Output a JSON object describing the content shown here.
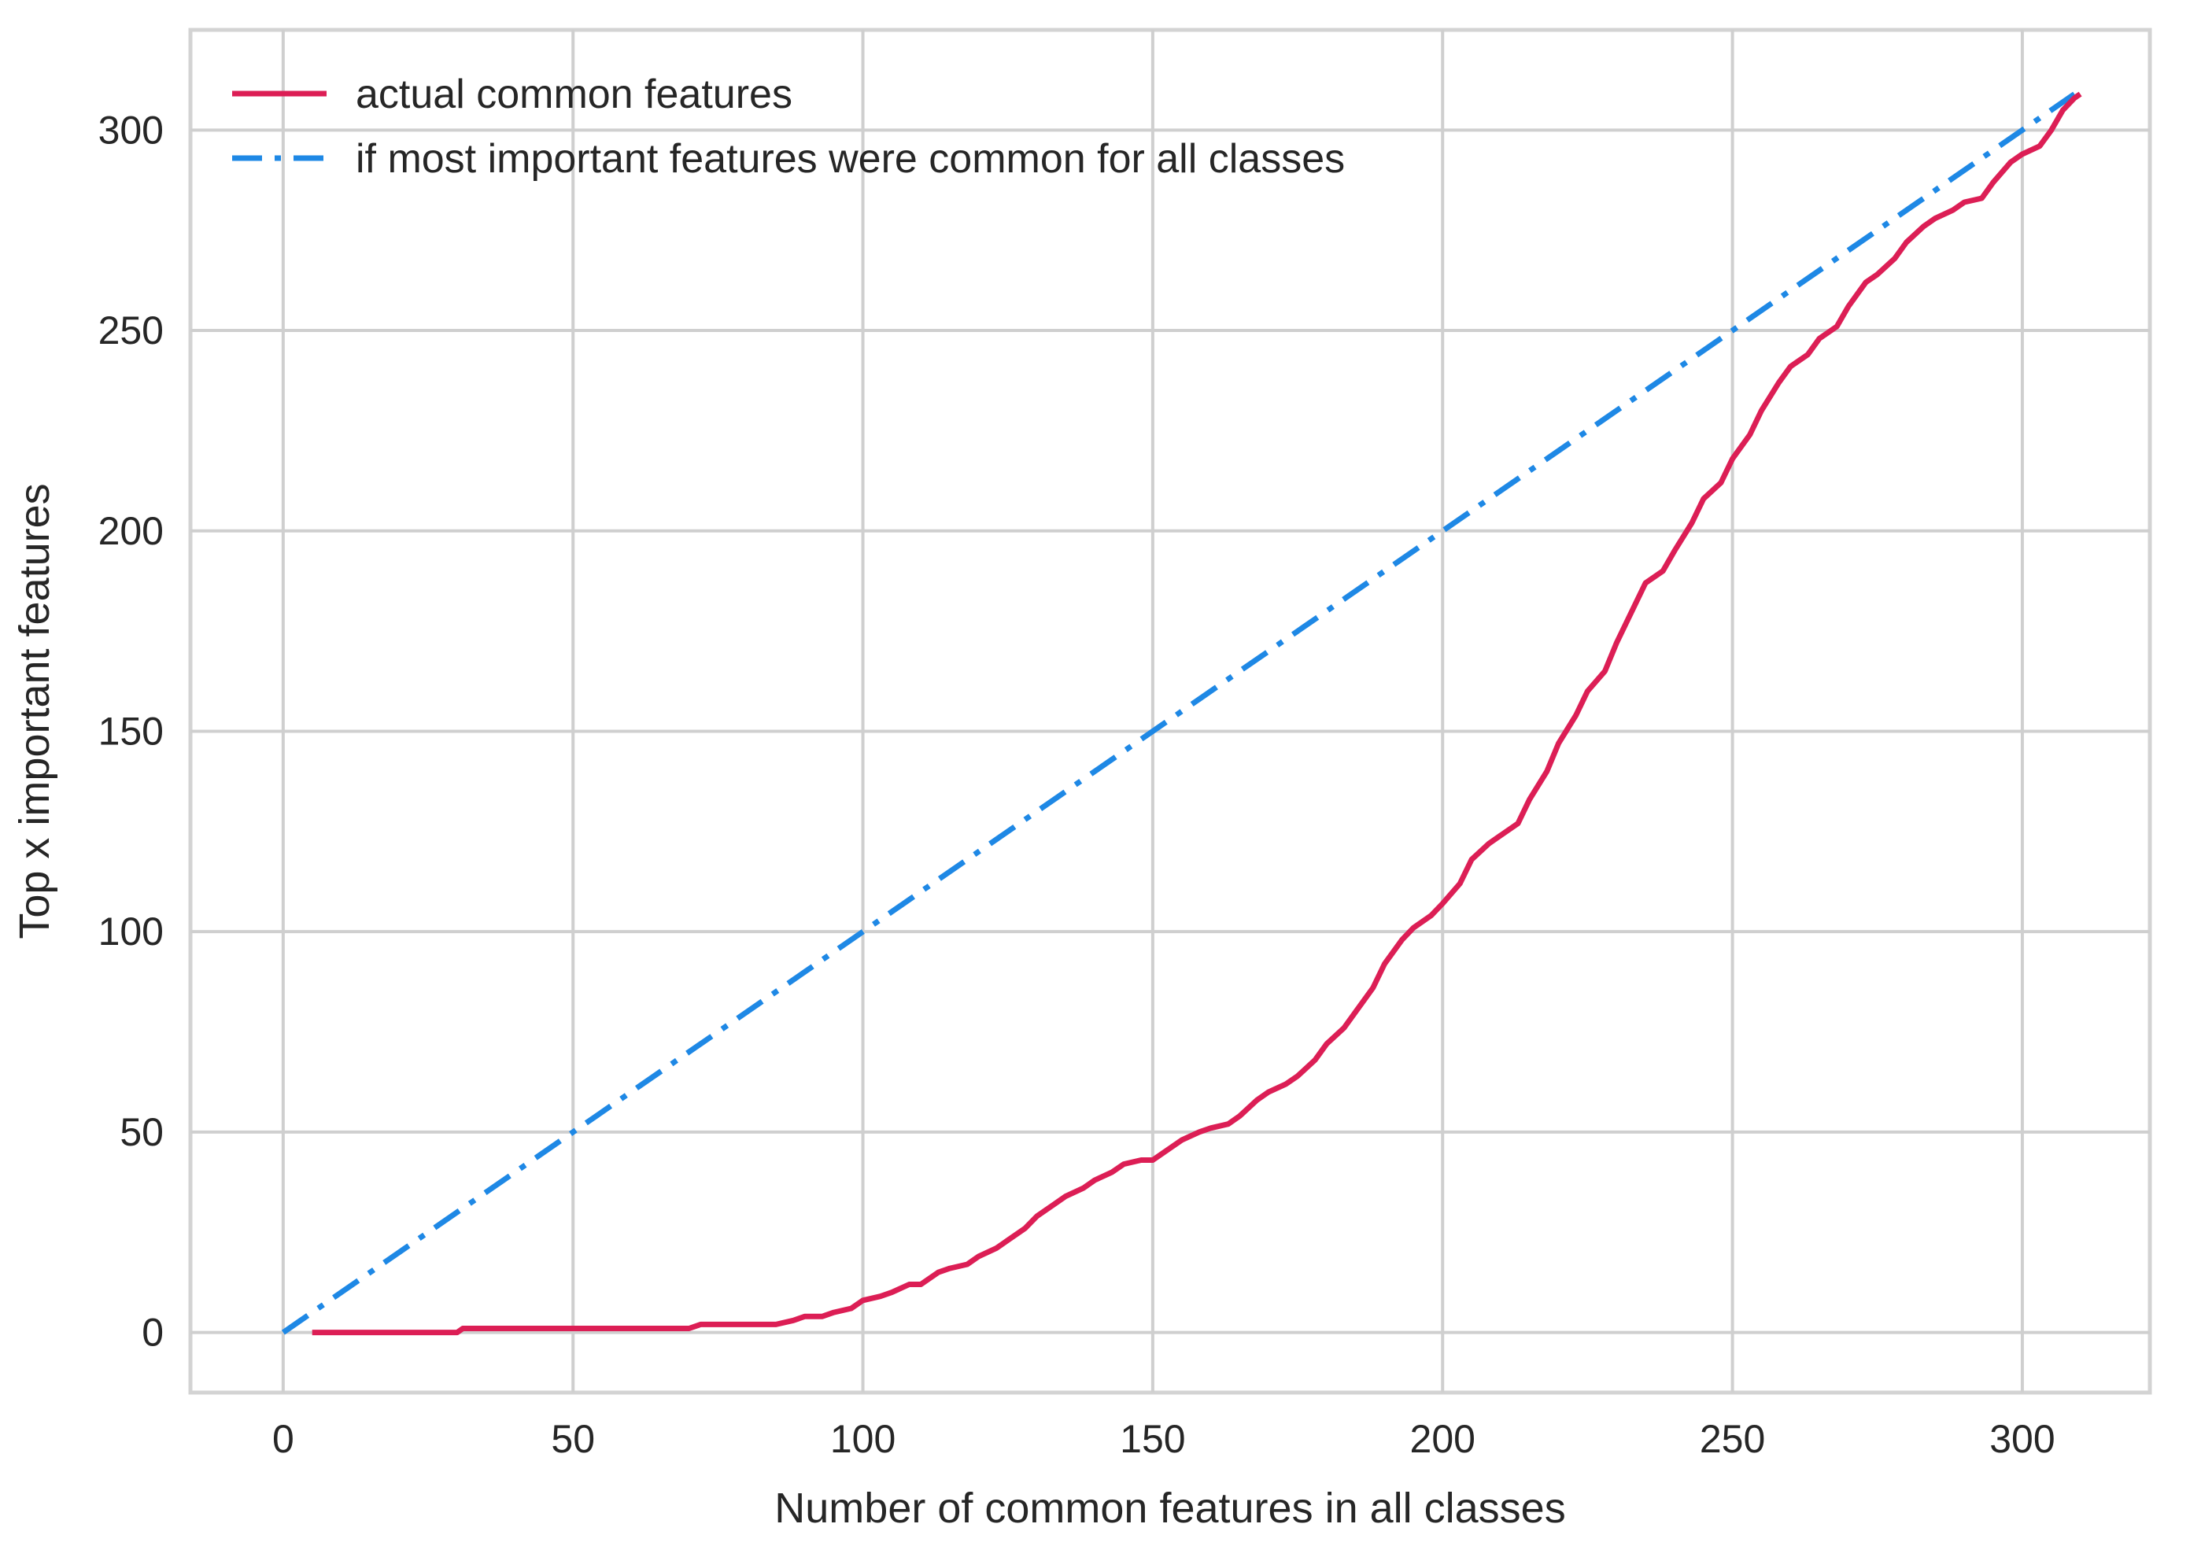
{
  "chart_data": {
    "type": "line",
    "title": "",
    "xlabel": "Number of common features in all classes",
    "ylabel": "Top x important features",
    "xlim": [
      -16,
      322
    ],
    "ylim": [
      -15,
      325
    ],
    "xticks": [
      0,
      50,
      100,
      150,
      200,
      250,
      300
    ],
    "yticks": [
      0,
      50,
      100,
      150,
      200,
      250,
      300
    ],
    "grid": true,
    "legend_position": "upper-left",
    "series": [
      {
        "name": "actual common features",
        "color": "#dc1e55",
        "style": "solid",
        "x": [
          5,
          20,
          30,
          31,
          45,
          60,
          70,
          72,
          80,
          85,
          88,
          90,
          93,
          95,
          98,
          100,
          103,
          105,
          108,
          110,
          113,
          115,
          118,
          120,
          123,
          125,
          128,
          130,
          133,
          135,
          138,
          140,
          143,
          145,
          148,
          150,
          153,
          155,
          158,
          160,
          163,
          165,
          168,
          170,
          173,
          175,
          178,
          180,
          183,
          185,
          188,
          190,
          193,
          195,
          198,
          200,
          203,
          205,
          208,
          210,
          213,
          215,
          218,
          220,
          223,
          225,
          228,
          230,
          233,
          235,
          238,
          240,
          243,
          245,
          248,
          250,
          253,
          255,
          258,
          260,
          263,
          265,
          268,
          270,
          273,
          275,
          278,
          280,
          283,
          285,
          288,
          290,
          293,
          295,
          298,
          300,
          303,
          305,
          307,
          309,
          310
        ],
        "y": [
          0,
          0,
          0,
          1,
          1,
          1,
          1,
          2,
          2,
          2,
          3,
          4,
          4,
          5,
          6,
          8,
          9,
          10,
          12,
          12,
          15,
          16,
          17,
          19,
          21,
          23,
          26,
          29,
          32,
          34,
          36,
          38,
          40,
          42,
          43,
          43,
          46,
          48,
          50,
          51,
          52,
          54,
          58,
          60,
          62,
          64,
          68,
          72,
          76,
          80,
          86,
          92,
          98,
          101,
          104,
          107,
          112,
          118,
          122,
          124,
          127,
          133,
          140,
          147,
          154,
          160,
          165,
          172,
          181,
          187,
          190,
          195,
          202,
          208,
          212,
          218,
          224,
          230,
          237,
          241,
          244,
          248,
          251,
          256,
          262,
          264,
          268,
          272,
          276,
          278,
          280,
          282,
          283,
          287,
          292,
          294,
          296,
          300,
          305,
          308,
          309
        ]
      },
      {
        "name": "if most important features were common for all classes",
        "color": "#1e88e5",
        "style": "dashdot",
        "x": [
          0,
          309
        ],
        "y": [
          0,
          309
        ]
      }
    ]
  }
}
